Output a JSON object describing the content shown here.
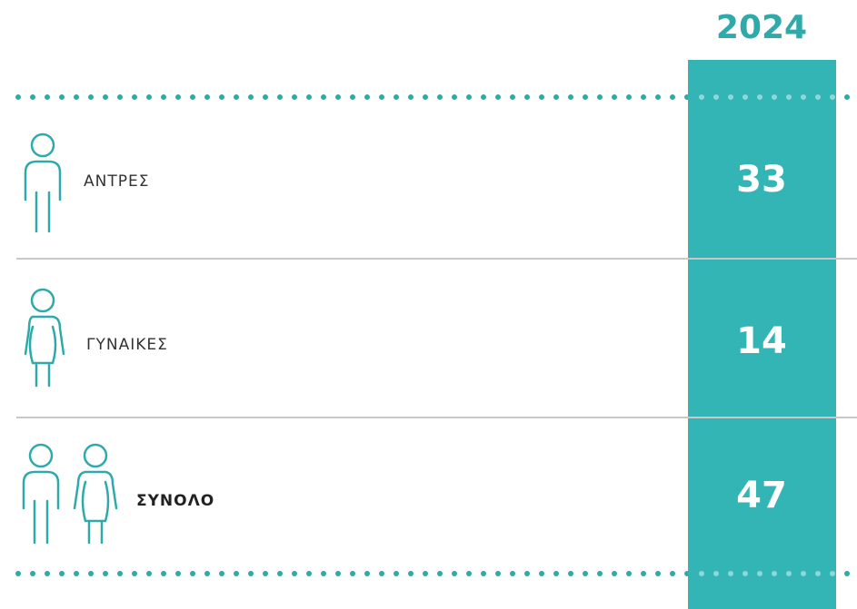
{
  "table": {
    "header": "2024",
    "rows": [
      [
        "ΑΝΤΡΕΣ",
        33
      ],
      [
        "ΓΥΝΑΙΚΕΣ",
        14
      ],
      [
        "ΣΥΝΟΛΟ",
        47
      ]
    ]
  }
}
